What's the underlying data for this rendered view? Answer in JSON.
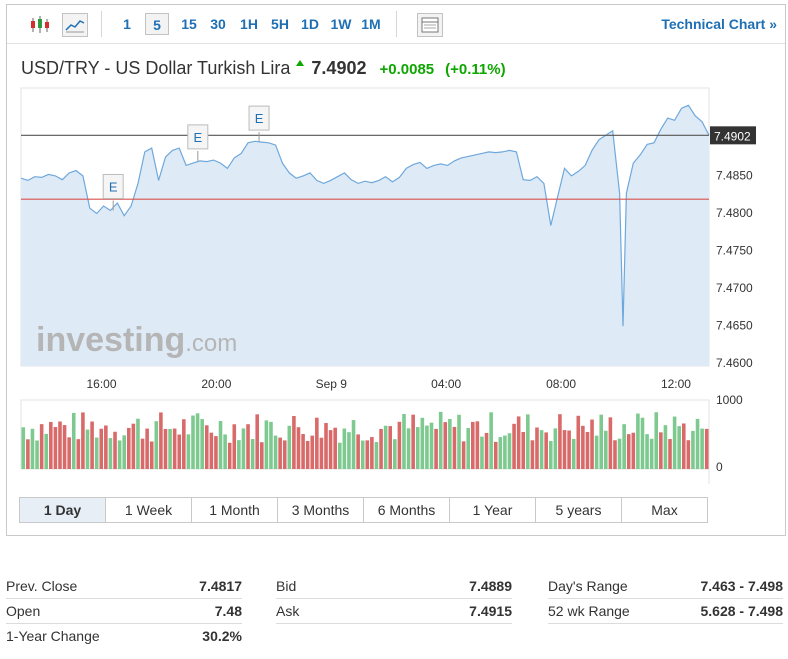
{
  "toolbar": {
    "candle_icon": "candlestick-icon",
    "line_icon": "line-chart-icon",
    "intervals": [
      "1",
      "5",
      "15",
      "30",
      "1H",
      "5H",
      "1D",
      "1W",
      "1M"
    ],
    "selected_interval": "5",
    "table_icon": "table-icon",
    "technical_chart": "Technical Chart »"
  },
  "header": {
    "title": "USD/TRY - US Dollar Turkish Lira",
    "price": "7.4902",
    "change": "+0.0085",
    "change_pct": "(+0.11%)",
    "up_color": "#0ea600"
  },
  "chart_data": {
    "type": "line",
    "x_tick_labels": [
      "16:00",
      "20:00",
      "Sep 9",
      "04:00",
      "08:00",
      "12:00"
    ],
    "y_ticks": [
      7.485,
      7.48,
      7.475,
      7.47,
      7.465,
      7.46
    ],
    "y_tick_labels": [
      "7.4850",
      "7.4800",
      "7.4750",
      "7.4700",
      "7.4650",
      "7.4600"
    ],
    "ylim": [
      7.4595,
      7.4965
    ],
    "current_price_label": "7.4902",
    "current_price": 7.4902,
    "prev_close": 7.4817,
    "x_range": [
      0,
      100
    ],
    "x_tick_positions": [
      11.7,
      28.4,
      45.1,
      61.8,
      78.5,
      95.2
    ],
    "events": [
      {
        "label": "E",
        "x": 13.4
      },
      {
        "label": "E",
        "x": 25.7
      },
      {
        "label": "E",
        "x": 34.6
      }
    ],
    "series": [
      {
        "values": [
          [
            0,
            7.4845
          ],
          [
            1,
            7.4842
          ],
          [
            2,
            7.4847
          ],
          [
            3,
            7.4846
          ],
          [
            4,
            7.485
          ],
          [
            5,
            7.4848
          ],
          [
            6,
            7.4843
          ],
          [
            7,
            7.4852
          ],
          [
            8,
            7.4855
          ],
          [
            9,
            7.4848
          ],
          [
            10,
            7.4805
          ],
          [
            11,
            7.4798
          ],
          [
            12,
            7.4808
          ],
          [
            13,
            7.4802
          ],
          [
            14,
            7.4812
          ],
          [
            15,
            7.4795
          ],
          [
            16,
            7.4808
          ],
          [
            17,
            7.4838
          ],
          [
            18,
            7.488
          ],
          [
            19,
            7.4885
          ],
          [
            20,
            7.4842
          ],
          [
            21,
            7.4873
          ],
          [
            22,
            7.4882
          ],
          [
            23,
            7.4885
          ],
          [
            24,
            7.4862
          ],
          [
            25,
            7.4865
          ],
          [
            26,
            7.4868
          ],
          [
            27,
            7.4867
          ],
          [
            28,
            7.4869
          ],
          [
            29,
            7.4865
          ],
          [
            30,
            7.4858
          ],
          [
            31,
            7.4872
          ],
          [
            32,
            7.4878
          ],
          [
            33,
            7.4892
          ],
          [
            34,
            7.4894
          ],
          [
            35,
            7.4893
          ],
          [
            36,
            7.4892
          ],
          [
            37,
            7.4889
          ],
          [
            38,
            7.4865
          ],
          [
            39,
            7.4852
          ],
          [
            40,
            7.4845
          ],
          [
            41,
            7.4848
          ],
          [
            42,
            7.4852
          ],
          [
            43,
            7.4842
          ],
          [
            44,
            7.4838
          ],
          [
            45,
            7.4842
          ],
          [
            46,
            7.4847
          ],
          [
            47,
            7.4852
          ],
          [
            48,
            7.4843
          ],
          [
            49,
            7.4838
          ],
          [
            50,
            7.4841
          ],
          [
            51,
            7.4839
          ],
          [
            52,
            7.4842
          ],
          [
            53,
            7.4847
          ],
          [
            54,
            7.484
          ],
          [
            55,
            7.4846
          ],
          [
            56,
            7.4858
          ],
          [
            57,
            7.4863
          ],
          [
            58,
            7.4866
          ],
          [
            59,
            7.4858
          ],
          [
            60,
            7.4862
          ],
          [
            61,
            7.4864
          ],
          [
            62,
            7.4862
          ],
          [
            63,
            7.4868
          ],
          [
            64,
            7.4872
          ],
          [
            65,
            7.4874
          ],
          [
            66,
            7.4876
          ],
          [
            67,
            7.4878
          ],
          [
            68,
            7.488
          ],
          [
            69,
            7.4879
          ],
          [
            70,
            7.488
          ],
          [
            71,
            7.4882
          ],
          [
            72,
            7.488
          ],
          [
            73,
            7.4843
          ],
          [
            74,
            7.4842
          ],
          [
            75,
            7.4847
          ],
          [
            76,
            7.4838
          ],
          [
            77,
            7.4782
          ],
          [
            78,
            7.482
          ],
          [
            79,
            7.4858
          ],
          [
            80,
            7.4848
          ],
          [
            81,
            7.4854
          ],
          [
            82,
            7.4862
          ],
          [
            83,
            7.4882
          ],
          [
            84,
            7.4896
          ],
          [
            85,
            7.4902
          ],
          [
            86,
            7.4908
          ],
          [
            87,
            7.4825
          ],
          [
            87.5,
            7.4648
          ],
          [
            88,
            7.4825
          ],
          [
            89,
            7.4865
          ],
          [
            90,
            7.4876
          ],
          [
            91,
            7.489
          ],
          [
            92,
            7.4892
          ],
          [
            93,
            7.491
          ],
          [
            94,
            7.4925
          ],
          [
            95,
            7.4922
          ],
          [
            96,
            7.4938
          ],
          [
            97,
            7.4942
          ],
          [
            98,
            7.4928
          ],
          [
            99,
            7.492
          ],
          [
            100,
            7.4902
          ]
        ]
      }
    ],
    "volume_ticks": [
      1000,
      0
    ],
    "volume_bar_count": 150,
    "volume_bar_colors": {
      "up": "#7dc98f",
      "down": "#d96a6a"
    },
    "grid": false
  },
  "ranges": [
    "1 Day",
    "1 Week",
    "1 Month",
    "3 Months",
    "6 Months",
    "1 Year",
    "5 years",
    "Max"
  ],
  "selected_range": "1 Day",
  "stats": {
    "col1": [
      {
        "label": "Prev. Close",
        "value": "7.4817"
      },
      {
        "label": "Open",
        "value": "7.48"
      },
      {
        "label": "1-Year Change",
        "value": "30.2%"
      }
    ],
    "col2": [
      {
        "label": "Bid",
        "value": "7.4889"
      },
      {
        "label": "Ask",
        "value": "7.4915"
      }
    ],
    "col3": [
      {
        "label": "Day's Range",
        "value": "7.463 - 7.498"
      },
      {
        "label": "52 wk Range",
        "value": "5.628 - 7.498"
      }
    ]
  },
  "watermark": "investing.com"
}
